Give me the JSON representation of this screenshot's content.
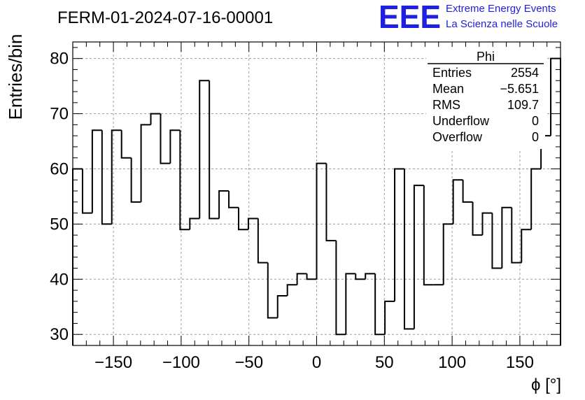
{
  "header": {
    "run_id": "FERM-01-2024-07-16-00001",
    "logo_text": "EEE",
    "logo_line1": "Extreme Energy Events",
    "logo_line2": "La Scienza nelle Scuole",
    "logo_color": "#1f1fe0"
  },
  "stats": {
    "title": "Phi",
    "rows": [
      {
        "label": "Entries",
        "value": "2554"
      },
      {
        "label": "Mean",
        "value": "−5.651"
      },
      {
        "label": "RMS",
        "value": "109.7"
      },
      {
        "label": "Underflow",
        "value": "0"
      },
      {
        "label": "Overflow",
        "value": "0"
      }
    ]
  },
  "chart_data": {
    "type": "histogram",
    "title": "FERM-01-2024-07-16-00001",
    "xlabel": "ϕ [°]",
    "ylabel": "Entries/bin",
    "xlim": [
      -180,
      180
    ],
    "ylim": [
      28,
      83
    ],
    "bin_width": 7.2,
    "xticks": [
      -150,
      -100,
      -50,
      0,
      50,
      100,
      150
    ],
    "yticks": [
      30,
      40,
      50,
      60,
      70,
      80
    ],
    "grid": true,
    "values": [
      60,
      52,
      67,
      50,
      67,
      62,
      54,
      68,
      70,
      61,
      67,
      49,
      51,
      76,
      51,
      56,
      53,
      49,
      51,
      43,
      33,
      37,
      39,
      41,
      40,
      61,
      47,
      30,
      41,
      40,
      41,
      30,
      36,
      60,
      31,
      57,
      39,
      39,
      50,
      58,
      54,
      48,
      52,
      42,
      53,
      43,
      49,
      60,
      66,
      80
    ]
  }
}
